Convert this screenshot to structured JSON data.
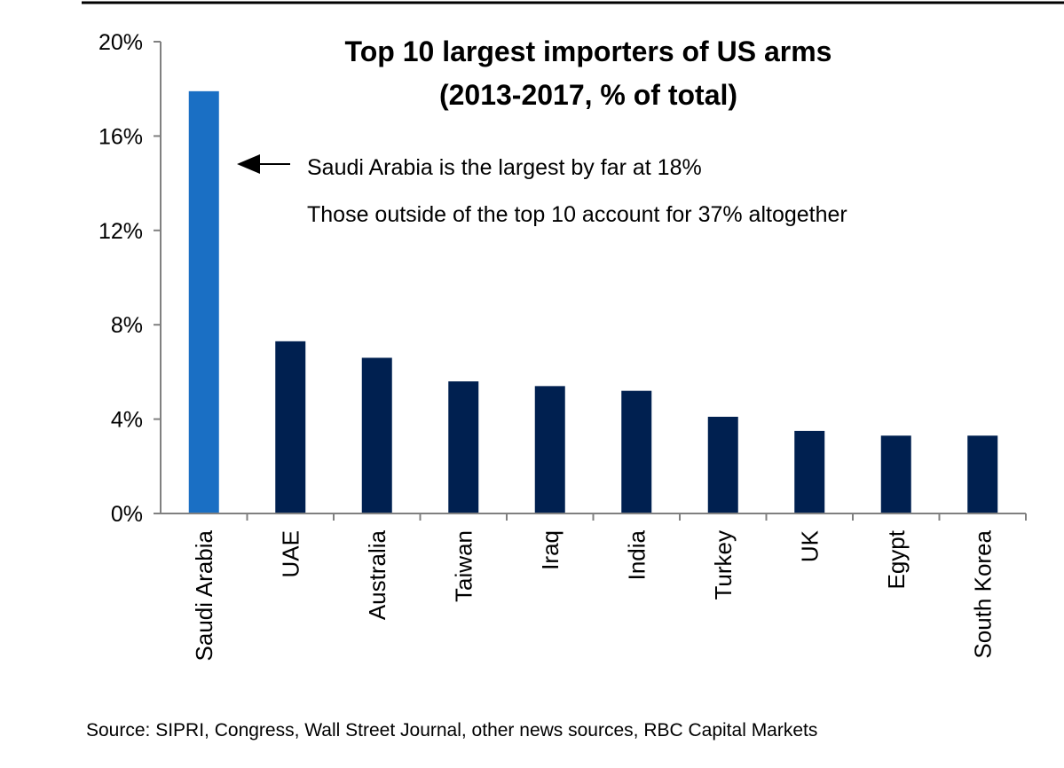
{
  "chart_data": {
    "type": "bar",
    "title_line1": "Top 10 largest importers of US arms",
    "title_line2": "(2013-2017, % of total)",
    "categories": [
      "Saudi Arabia",
      "UAE",
      "Australia",
      "Taiwan",
      "Iraq",
      "India",
      "Turkey",
      "UK",
      "Egypt",
      "South Korea"
    ],
    "values": [
      17.9,
      7.3,
      6.6,
      5.6,
      5.4,
      5.2,
      4.1,
      3.5,
      3.3,
      3.3
    ],
    "ylim": [
      0,
      20
    ],
    "yticks": [
      0,
      4,
      8,
      12,
      16,
      20
    ],
    "ytick_labels": [
      "0%",
      "4%",
      "8%",
      "12%",
      "16%",
      "20%"
    ],
    "xlabel": "",
    "ylabel": "",
    "grid": false,
    "colors": {
      "highlight": "#1a6fc4",
      "bar": "#002050",
      "axis": "#808080",
      "top_border": "#000000"
    },
    "highlight_index": 0,
    "annotations": [
      "Saudi Arabia is the largest by far at 18%",
      "Those outside of the top 10 account for 37% altogether"
    ]
  },
  "source": "Source: SIPRI, Congress, Wall Street Journal, other news sources, RBC Capital Markets"
}
